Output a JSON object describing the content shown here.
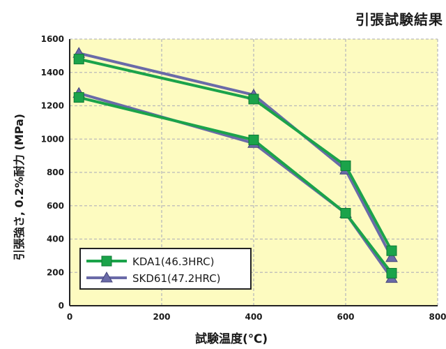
{
  "chart_data": {
    "type": "line",
    "title": "引張試験結果",
    "xlabel": "試験温度(℃)",
    "ylabel": "引張強さ, 0.2%耐力 (MPa)",
    "xlim": [
      0,
      800
    ],
    "ylim": [
      0,
      1600
    ],
    "xticks": [
      "0",
      "200",
      "400",
      "600",
      "800"
    ],
    "yticks": [
      "0",
      "200",
      "400",
      "600",
      "800",
      "1000",
      "1200",
      "1400",
      "1600"
    ],
    "grid": true,
    "legend_position": "bottom-left",
    "series": [
      {
        "name": "KDA1(46.3HRC)",
        "marker": "square",
        "color": "#1ba34a",
        "lines": [
          {
            "x": [
              20,
              400,
              600,
              700
            ],
            "y": [
              1480,
              1240,
              840,
              330
            ]
          },
          {
            "x": [
              20,
              400,
              600,
              700
            ],
            "y": [
              1250,
              995,
              555,
              195
            ]
          }
        ]
      },
      {
        "name": "SKD61(47.2HRC)",
        "marker": "triangle",
        "color": "#6a6aa8",
        "lines": [
          {
            "x": [
              20,
              400,
              600,
              700
            ],
            "y": [
              1515,
              1265,
              815,
              290
            ]
          },
          {
            "x": [
              20,
              400,
              600,
              700
            ],
            "y": [
              1275,
              975,
              555,
              165
            ]
          }
        ]
      }
    ]
  }
}
